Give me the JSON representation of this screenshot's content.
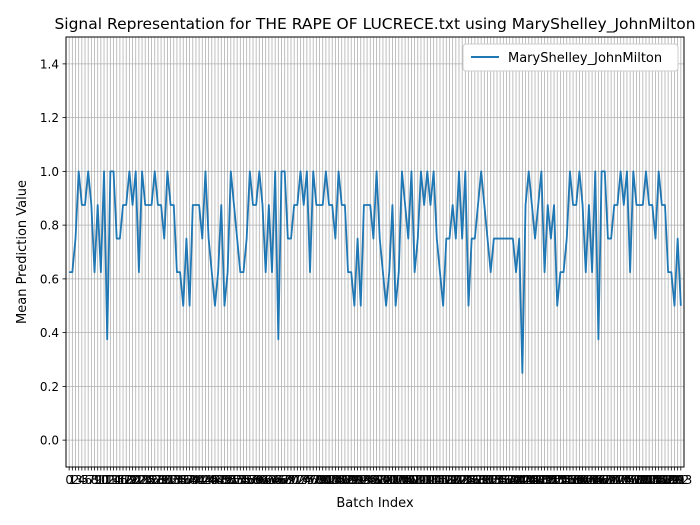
{
  "chart_data": {
    "type": "line",
    "title": "Signal Representation for THE RAPE OF LUCRECE.txt using MaryShelley_JohnMilton",
    "xlabel": "Batch Index",
    "ylabel": "Mean Prediction Value",
    "xlim": [
      -1,
      194
    ],
    "ylim": [
      -0.1,
      1.5
    ],
    "yticks": [
      "0.0",
      "0.2",
      "0.4",
      "0.6",
      "0.8",
      "1.0",
      "1.2",
      "1.4"
    ],
    "grid": true,
    "legend_position": "top-right",
    "series": [
      {
        "name": "MaryShelley_JohnMilton",
        "color": "#1f77b4",
        "x": [
          0,
          1,
          2,
          3,
          4,
          5,
          6,
          7,
          8,
          9,
          10,
          11,
          12,
          13,
          14,
          15,
          16,
          17,
          18,
          19,
          20,
          21,
          22,
          23,
          24,
          25,
          26,
          27,
          28,
          29,
          30,
          31,
          32,
          33,
          34,
          35,
          36,
          37,
          38,
          39,
          40,
          41,
          42,
          43,
          44,
          45,
          46,
          47,
          48,
          49,
          50,
          51,
          52,
          53,
          54,
          55,
          56,
          57,
          58,
          59,
          60,
          61,
          62,
          63,
          64,
          65,
          66,
          67,
          68,
          69,
          70,
          71,
          72,
          73,
          74,
          75,
          76,
          77,
          78,
          79,
          80,
          81,
          82,
          83,
          84,
          85,
          86,
          87,
          88,
          89,
          90,
          91,
          92,
          93,
          94,
          95,
          96,
          97,
          98,
          99,
          100,
          101,
          102,
          103,
          104,
          105,
          106,
          107,
          108,
          109,
          110,
          111,
          112,
          113,
          114,
          115,
          116,
          117,
          118,
          119,
          120,
          121,
          122,
          123,
          124,
          125,
          126,
          127,
          128,
          129,
          130,
          131,
          132,
          133,
          134,
          135,
          136,
          137,
          138,
          139,
          140,
          141,
          142,
          143,
          144,
          145,
          146,
          147,
          148,
          149,
          150,
          151,
          152,
          153,
          154,
          155,
          156,
          157,
          158,
          159,
          160,
          161,
          162,
          163,
          164,
          165,
          166,
          167,
          168,
          169,
          170,
          171,
          172,
          173,
          174,
          175,
          176,
          177,
          178,
          179,
          180,
          181,
          182,
          183,
          184,
          185,
          186,
          187,
          188,
          189,
          190,
          191,
          192,
          193
        ],
        "values": [
          0.625,
          0.625,
          0.75,
          1.0,
          0.875,
          0.875,
          1.0,
          0.875,
          0.625,
          0.875,
          0.625,
          1.0,
          0.375,
          1.0,
          1.0,
          0.75,
          0.75,
          0.875,
          0.875,
          1.0,
          0.875,
          1.0,
          0.625,
          1.0,
          0.875,
          0.875,
          0.875,
          1.0,
          0.875,
          0.875,
          0.75,
          1.0,
          0.875,
          0.875,
          0.625,
          0.625,
          0.5,
          0.75,
          0.5,
          0.875,
          0.875,
          0.875,
          0.75,
          1.0,
          0.75,
          0.625,
          0.5,
          0.625,
          0.875,
          0.5,
          0.625,
          1.0,
          0.875,
          0.75,
          0.625,
          0.625,
          0.75,
          1.0,
          0.875,
          0.875,
          1.0,
          0.875,
          0.625,
          0.875,
          0.625,
          1.0,
          0.375,
          1.0,
          1.0,
          0.75,
          0.75,
          0.875,
          0.875,
          1.0,
          0.875,
          1.0,
          0.625,
          1.0,
          0.875,
          0.875,
          0.875,
          1.0,
          0.875,
          0.875,
          0.75,
          1.0,
          0.875,
          0.875,
          0.625,
          0.625,
          0.5,
          0.75,
          0.5,
          0.875,
          0.875,
          0.875,
          0.75,
          1.0,
          0.75,
          0.625,
          0.5,
          0.625,
          0.875,
          0.5,
          0.625,
          1.0,
          0.875,
          0.75,
          1.0,
          0.625,
          0.75,
          1.0,
          0.875,
          1.0,
          0.875,
          1.0,
          0.75,
          0.625,
          0.5,
          0.75,
          0.75,
          0.875,
          0.75,
          1.0,
          0.75,
          1.0,
          0.5,
          0.75,
          0.75,
          0.875,
          1.0,
          0.875,
          0.75,
          0.625,
          0.75,
          0.75,
          0.75,
          0.75,
          0.75,
          0.75,
          0.75,
          0.625,
          0.75,
          0.25,
          0.875,
          1.0,
          0.875,
          0.75,
          0.875,
          1.0,
          0.625,
          0.875,
          0.75,
          0.875,
          0.5,
          0.625,
          0.625,
          0.75,
          1.0,
          0.875,
          0.875,
          1.0,
          0.875,
          0.625,
          0.875,
          0.625,
          1.0,
          0.375,
          1.0,
          1.0,
          0.75,
          0.75,
          0.875,
          0.875,
          1.0,
          0.875,
          1.0,
          0.625,
          1.0,
          0.875,
          0.875,
          0.875,
          1.0,
          0.875,
          0.875,
          0.75,
          1.0,
          0.875,
          0.875,
          0.625,
          0.625,
          0.5,
          0.75,
          0.5
        ]
      }
    ]
  }
}
